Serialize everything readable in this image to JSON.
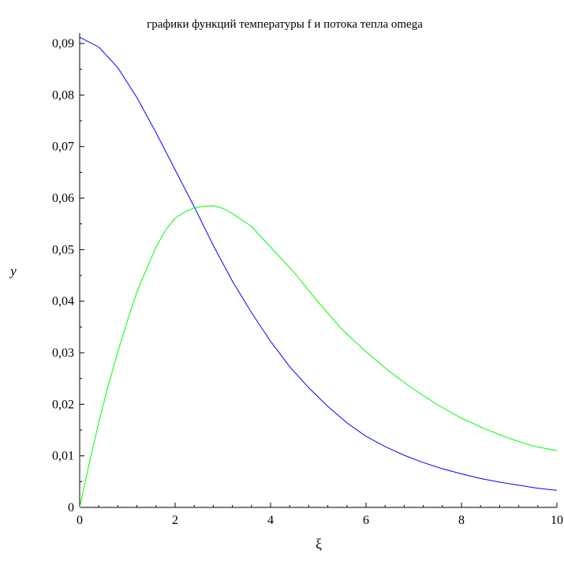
{
  "chart_data": {
    "type": "line",
    "title": "графики функций температуры f и потока тепла omega",
    "xlabel": "ξ",
    "ylabel": "y",
    "xlim": [
      0,
      10
    ],
    "ylim": [
      0,
      0.092
    ],
    "x_ticks": [
      0,
      2,
      4,
      6,
      8,
      10
    ],
    "x_tick_labels": [
      "0",
      "2",
      "4",
      "6",
      "8",
      "10"
    ],
    "y_ticks": [
      0,
      0.01,
      0.02,
      0.03,
      0.04,
      0.05,
      0.06,
      0.07,
      0.08,
      0.09
    ],
    "y_tick_labels": [
      "0",
      "0,01",
      "0,02",
      "0,03",
      "0,04",
      "0,05",
      "0,06",
      "0,07",
      "0,08",
      "0,09"
    ],
    "grid": false,
    "series": [
      {
        "color": "#0000ff",
        "x": [
          0,
          0.4,
          0.8,
          1.2,
          1.6,
          2.0,
          2.4,
          2.8,
          3.2,
          3.6,
          4.0,
          4.4,
          4.8,
          5.2,
          5.6,
          6.0,
          6.4,
          6.8,
          7.2,
          7.6,
          8.0,
          8.4,
          8.8,
          9.2,
          9.6,
          10.0
        ],
        "values": [
          0.0912,
          0.0893,
          0.0853,
          0.0795,
          0.0727,
          0.0655,
          0.0583,
          0.0508,
          0.0439,
          0.0378,
          0.0322,
          0.0273,
          0.0232,
          0.0196,
          0.0164,
          0.0138,
          0.0118,
          0.0101,
          0.0087,
          0.0075,
          0.0065,
          0.0056,
          0.0049,
          0.0043,
          0.0037,
          0.0033
        ]
      },
      {
        "color": "#00ff00",
        "x": [
          0,
          0.2,
          0.4,
          0.6,
          0.8,
          1.0,
          1.2,
          1.4,
          1.6,
          1.8,
          2.0,
          2.2,
          2.4,
          2.6,
          2.8,
          3.0,
          3.2,
          3.6,
          4.0,
          4.5,
          5.0,
          5.5,
          6.0,
          6.5,
          7.0,
          7.5,
          8.0,
          8.5,
          9.0,
          9.5,
          10.0
        ],
        "values": [
          0.0,
          0.0085,
          0.0165,
          0.0237,
          0.0302,
          0.0362,
          0.0418,
          0.0462,
          0.0505,
          0.0538,
          0.0561,
          0.0573,
          0.0581,
          0.0584,
          0.0585,
          0.058,
          0.057,
          0.0545,
          0.0505,
          0.0455,
          0.0398,
          0.0345,
          0.0302,
          0.0263,
          0.0229,
          0.0199,
          0.0173,
          0.0152,
          0.0134,
          0.0119,
          0.011
        ]
      }
    ]
  }
}
